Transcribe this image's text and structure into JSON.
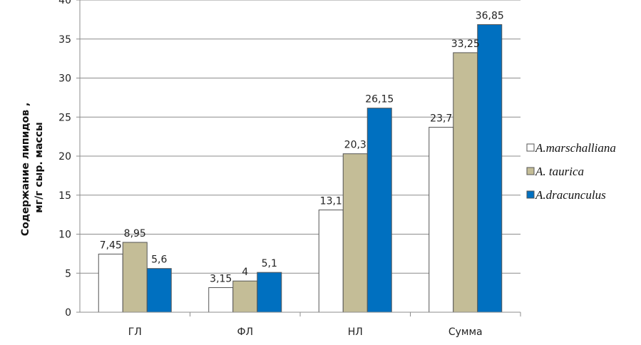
{
  "chart_data": {
    "type": "bar",
    "categories": [
      "ГЛ",
      "ФЛ",
      "НЛ",
      "Сумма"
    ],
    "series": [
      {
        "name": "A.marschalliana",
        "values": [
          7.45,
          3.15,
          13.1,
          23.7
        ],
        "labels": [
          "7,45",
          "3,15",
          "13,1",
          "23,7"
        ],
        "color": "#ffffff"
      },
      {
        "name": "A. taurica",
        "values": [
          8.95,
          4,
          20.3,
          33.25
        ],
        "labels": [
          "8,95",
          "4",
          "20,3",
          "33,25"
        ],
        "color": "#c4bd97"
      },
      {
        "name": "A.dracunculus",
        "values": [
          5.6,
          5.1,
          26.15,
          36.85
        ],
        "labels": [
          "5,6",
          "5,1",
          "26,15",
          "36,85"
        ],
        "color": "#0070c0"
      }
    ],
    "ylabel_lines": [
      "Содержание липидов ,",
      "мг/г сыр. массы"
    ],
    "xlabel": "",
    "ylim": [
      0,
      40
    ],
    "yticks": [
      0,
      5,
      10,
      15,
      20,
      25,
      30,
      35,
      40
    ],
    "grid": true,
    "legend_position": "right"
  }
}
